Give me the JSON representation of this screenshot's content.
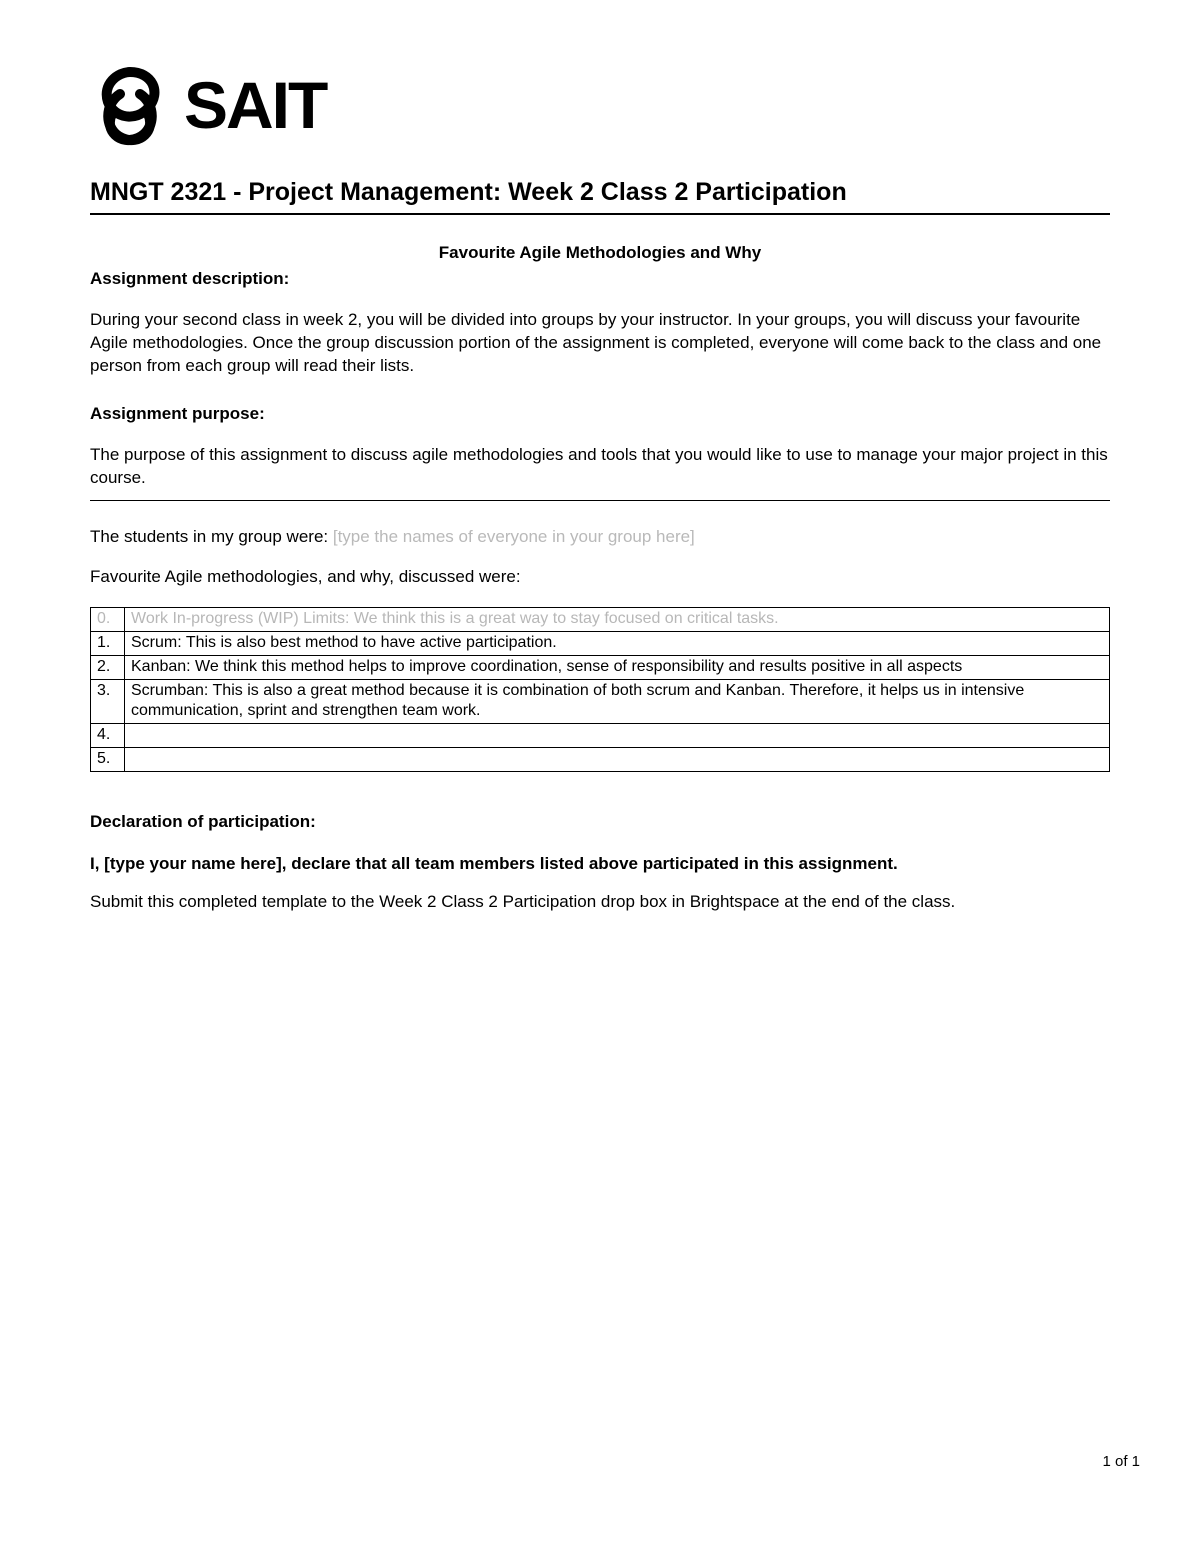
{
  "logo": {
    "text": "SAIT"
  },
  "title": "MNGT 2321 - Project Management: Week 2 Class 2 Participation",
  "subtitle": "Favourite Agile Methodologies and Why",
  "description_label": "Assignment description:",
  "description_body": "During your second class in week 2, you will be divided into groups by your instructor. In your groups, you will discuss your favourite Agile methodologies. Once the group discussion portion of the assignment is completed, everyone will come back to the class and one person from each group will read their lists.",
  "purpose_label": "Assignment purpose:",
  "purpose_body": "The purpose of this assignment to discuss agile methodologies and tools that you would like to use to manage your major project in this course.",
  "group_line_prefix": "The students in my group were: ",
  "group_line_placeholder": "[type the names of everyone in your group here]",
  "fav_line": "Favourite Agile methodologies, and why, discussed were:",
  "table": {
    "rows": [
      {
        "num": "0.",
        "text": "Work In-progress (WIP) Limits: We think this is a great way to stay focused on critical tasks.",
        "grey": true
      },
      {
        "num": "1.",
        "text": "Scrum: This is also best method to have active participation.",
        "grey": false
      },
      {
        "num": "2.",
        "text": "Kanban: We think this method helps to improve coordination, sense of responsibility and results positive in all aspects",
        "grey": false
      },
      {
        "num": "3.",
        "text": "Scrumban: This is also a great method because it is combination of both scrum and Kanban. Therefore, it helps us in intensive communication, sprint and strengthen team work.",
        "grey": false
      },
      {
        "num": "4.",
        "text": "",
        "grey": false
      },
      {
        "num": "5.",
        "text": "",
        "grey": false
      }
    ]
  },
  "declaration_label": "Declaration of participation:",
  "declaration_body": "I, [type your name here], declare that all team members listed above participated in this assignment.",
  "submit_line": "Submit this completed template to the Week 2 Class 2 Participation drop box in Brightspace at the end of the class.",
  "footer": "1 of 1",
  "colors": {
    "text": "#000000",
    "placeholder": "#b9b9b9",
    "background": "#ffffff"
  }
}
